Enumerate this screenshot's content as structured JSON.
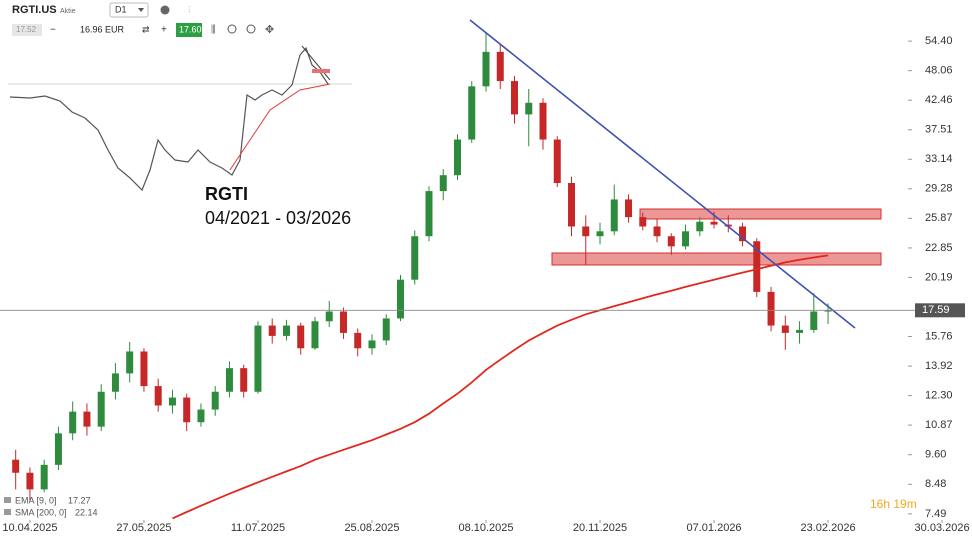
{
  "toolbar": {
    "symbol": "RGTI.US",
    "type": "Aktie",
    "timeframe": "D1",
    "bid": "17.52",
    "quantity": "16.96 EUR",
    "ask": "17.60"
  },
  "inset": {
    "title": "RGTI",
    "period": "04/2021 - 03/2026"
  },
  "countdown": "16h 19m",
  "chart_data": {
    "type": "candlestick",
    "log_scale": true,
    "up_color": "#2e8b3e",
    "down_color": "#c62828",
    "candles": [
      [
        9.4,
        9.8,
        8.3,
        8.9
      ],
      [
        8.9,
        9.1,
        7.9,
        8.3
      ],
      [
        8.3,
        9.4,
        8.2,
        9.2
      ],
      [
        9.2,
        10.8,
        9.0,
        10.5
      ],
      [
        10.5,
        12.0,
        10.2,
        11.5
      ],
      [
        11.5,
        11.9,
        10.4,
        10.8
      ],
      [
        10.8,
        12.9,
        10.6,
        12.5
      ],
      [
        12.5,
        14.1,
        12.1,
        13.5
      ],
      [
        13.5,
        15.4,
        13.0,
        14.8
      ],
      [
        14.8,
        15.0,
        12.5,
        12.8
      ],
      [
        12.8,
        13.2,
        11.5,
        11.8
      ],
      [
        11.8,
        12.6,
        11.4,
        12.2
      ],
      [
        12.2,
        12.4,
        10.6,
        11.0
      ],
      [
        11.0,
        11.9,
        10.8,
        11.6
      ],
      [
        11.6,
        12.8,
        11.3,
        12.5
      ],
      [
        12.5,
        14.2,
        12.2,
        13.8
      ],
      [
        13.8,
        14.0,
        12.2,
        12.5
      ],
      [
        12.5,
        16.8,
        12.4,
        16.5
      ],
      [
        16.5,
        17.0,
        15.3,
        15.8
      ],
      [
        15.8,
        16.9,
        15.5,
        16.5
      ],
      [
        16.5,
        16.7,
        14.6,
        15.0
      ],
      [
        15.0,
        17.1,
        14.9,
        16.8
      ],
      [
        16.8,
        18.3,
        16.4,
        17.5
      ],
      [
        17.5,
        17.8,
        15.6,
        16.0
      ],
      [
        16.0,
        16.3,
        14.5,
        15.0
      ],
      [
        15.0,
        15.9,
        14.6,
        15.5
      ],
      [
        15.5,
        17.3,
        15.2,
        17.0
      ],
      [
        17.0,
        20.4,
        16.8,
        20.0
      ],
      [
        20.0,
        24.6,
        19.6,
        24.0
      ],
      [
        24.0,
        29.6,
        23.5,
        29.0
      ],
      [
        29.0,
        31.8,
        27.9,
        31.0
      ],
      [
        31.0,
        36.8,
        30.4,
        36.0
      ],
      [
        36.0,
        46.0,
        35.5,
        45.0
      ],
      [
        45.0,
        56.5,
        44.0,
        52.0
      ],
      [
        52.0,
        53.5,
        44.5,
        46.0
      ],
      [
        46.0,
        47.0,
        38.5,
        40.0
      ],
      [
        40.0,
        44.5,
        35.0,
        42.0
      ],
      [
        42.0,
        42.8,
        34.5,
        36.0
      ],
      [
        36.0,
        36.5,
        29.5,
        30.0
      ],
      [
        30.0,
        30.8,
        24.0,
        25.0
      ],
      [
        25.0,
        26.2,
        21.3,
        24.0
      ],
      [
        24.0,
        25.4,
        23.2,
        24.5
      ],
      [
        24.5,
        29.8,
        24.1,
        28.0
      ],
      [
        28.0,
        28.6,
        25.4,
        26.0
      ],
      [
        26.0,
        26.5,
        24.6,
        25.0
      ],
      [
        25.0,
        25.8,
        23.4,
        24.0
      ],
      [
        24.0,
        24.3,
        22.2,
        23.0
      ],
      [
        23.0,
        25.2,
        22.7,
        24.5
      ],
      [
        24.5,
        26.0,
        24.0,
        25.5
      ],
      [
        25.5,
        26.6,
        24.8,
        25.2
      ],
      [
        25.2,
        26.2,
        24.4,
        25.0
      ],
      [
        25.0,
        25.4,
        23.0,
        23.5
      ],
      [
        23.5,
        23.8,
        18.6,
        19.0
      ],
      [
        19.0,
        19.4,
        16.1,
        16.5
      ],
      [
        16.5,
        17.2,
        14.9,
        16.0
      ],
      [
        16.0,
        16.8,
        15.3,
        16.2
      ],
      [
        16.2,
        18.9,
        16.0,
        17.5
      ],
      [
        17.5,
        18.1,
        16.6,
        17.6
      ]
    ],
    "series": [
      {
        "name": "SMA [200, 0]",
        "color": "#e0281e",
        "values": [
          null,
          null,
          null,
          null,
          null,
          null,
          null,
          null,
          null,
          null,
          null,
          7.35,
          7.55,
          7.75,
          7.95,
          8.15,
          8.35,
          8.55,
          8.75,
          8.95,
          9.15,
          9.4,
          9.6,
          9.8,
          10.0,
          10.2,
          10.45,
          10.7,
          11.0,
          11.4,
          11.9,
          12.4,
          13.0,
          13.7,
          14.3,
          14.9,
          15.5,
          16.0,
          16.5,
          16.9,
          17.3,
          17.6,
          17.9,
          18.2,
          18.5,
          18.8,
          19.1,
          19.4,
          19.7,
          20.0,
          20.3,
          20.6,
          20.9,
          21.2,
          21.5,
          21.75,
          21.95,
          22.14
        ]
      }
    ],
    "indicators": [
      {
        "name": "EMA [9, 0]",
        "value": 17.27
      },
      {
        "name": "SMA [200, 0]",
        "value": 22.14
      }
    ],
    "last_price": 17.59,
    "xlim": [
      -1.1,
      67.1
    ],
    "xticks": [
      {
        "value": 1,
        "label": "10.04.2025"
      },
      {
        "value": 9,
        "label": "27.05.2025"
      },
      {
        "value": 17,
        "label": "11.07.2025"
      },
      {
        "value": 25,
        "label": "25.08.2025"
      },
      {
        "value": 33,
        "label": "08.10.2025"
      },
      {
        "value": 41,
        "label": "20.11.2025"
      },
      {
        "value": 49,
        "label": "07.01.2026"
      },
      {
        "value": 57,
        "label": "23.02.2026"
      },
      {
        "value": 65,
        "label": "30.03.2026"
      }
    ],
    "ylim": [
      7.3,
      62.5
    ],
    "yticks": [
      7.49,
      8.48,
      {
        "value": 9.6,
        "label": "9.60"
      },
      10.87,
      {
        "value": 12.3,
        "label": "12.30"
      },
      13.92,
      15.76,
      20.19,
      22.85,
      25.87,
      29.28,
      33.14,
      37.51,
      42.46,
      48.06,
      {
        "value": 54.4,
        "label": "54.40"
      }
    ]
  }
}
